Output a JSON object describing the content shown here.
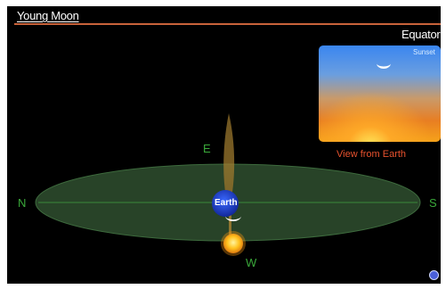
{
  "title": "Young Moon",
  "location": "Equator",
  "directions": {
    "north": "N",
    "south": "S",
    "east": "E",
    "west": "W"
  },
  "earth_label": "Earth",
  "view_panel": {
    "label": "Sunset",
    "caption": "View from Earth"
  },
  "colors": {
    "background": "#000000",
    "horizon_plane": "#2c4a2c",
    "direction_text": "#3aa83a",
    "title_rule": "#c8623a",
    "caption": "#e8522e",
    "sun": "#ffb21e",
    "earth": "#1f3fbf"
  },
  "icons": {
    "moon": "crescent-moon-icon",
    "sun": "sun-icon",
    "help": "help-icon"
  }
}
